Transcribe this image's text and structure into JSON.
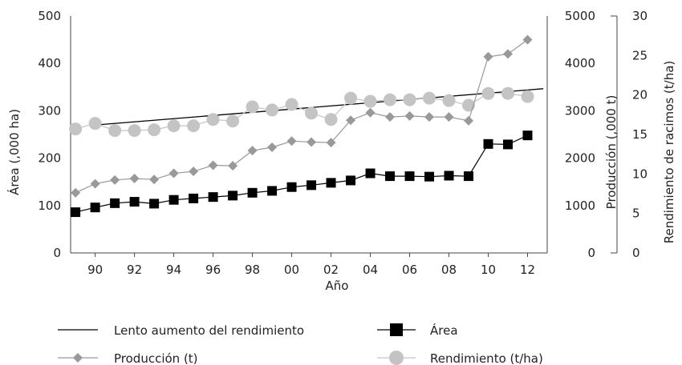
{
  "chart_data": {
    "type": "line",
    "xlabel": "Año",
    "x": [
      1989,
      1990,
      1991,
      1992,
      1993,
      1994,
      1995,
      1996,
      1997,
      1998,
      1999,
      2000,
      2001,
      2002,
      2003,
      2004,
      2005,
      2006,
      2007,
      2008,
      2009,
      2010,
      2011,
      2012
    ],
    "x_tick_labels": [
      "90",
      "92",
      "94",
      "96",
      "98",
      "00",
      "02",
      "04",
      "06",
      "08",
      "10",
      "12"
    ],
    "x_tick_values": [
      1990,
      1992,
      1994,
      1996,
      1998,
      2000,
      2002,
      2004,
      2006,
      2008,
      2010,
      2012
    ],
    "axes": {
      "left": {
        "label": "Área (,000 ha)",
        "ylim": [
          0,
          500
        ],
        "ticks": [
          "0",
          "100",
          "200",
          "300",
          "400",
          "500"
        ]
      },
      "right1": {
        "label": "Producción (,000 t)",
        "ylim": [
          0,
          5000
        ],
        "ticks": [
          "0",
          "1000",
          "2000",
          "3000",
          "4000",
          "5000"
        ]
      },
      "right2": {
        "label": "Rendimiento de racimos (t/ha)",
        "ylim": [
          0,
          30
        ],
        "ticks": [
          "0",
          "5",
          "10",
          "15",
          "20",
          "25",
          "30"
        ]
      }
    },
    "series": [
      {
        "name": "Área",
        "axis": "left",
        "color": "#000000",
        "marker": "square",
        "values": [
          86,
          96,
          105,
          108,
          104,
          112,
          115,
          118,
          121,
          127,
          131,
          139,
          143,
          148,
          153,
          168,
          162,
          162,
          161,
          163,
          162,
          230,
          229,
          248
        ]
      },
      {
        "name": "Producción (t)",
        "axis": "right1",
        "color": "#999999",
        "marker": "diamond",
        "values": [
          1270,
          1460,
          1540,
          1570,
          1550,
          1680,
          1720,
          1850,
          1840,
          2160,
          2230,
          2360,
          2340,
          2330,
          2800,
          2960,
          2870,
          2890,
          2870,
          2870,
          2790,
          4140,
          4200,
          4500
        ]
      },
      {
        "name": "Rendimiento (t/ha)",
        "axis": "right2",
        "color": "#c4c4c4",
        "marker": "circle",
        "values": [
          15.7,
          16.4,
          15.5,
          15.5,
          15.6,
          16.1,
          16.1,
          16.9,
          16.7,
          18.5,
          18.1,
          18.8,
          17.7,
          16.9,
          19.6,
          19.2,
          19.4,
          19.4,
          19.6,
          19.3,
          18.7,
          20.2,
          20.2,
          19.8
        ]
      },
      {
        "name": "Lento aumento del rendimiento",
        "axis": "right2",
        "color": "#000000",
        "marker": "none",
        "x": [
          1990,
          2012.8
        ],
        "values": [
          16.2,
          20.8
        ]
      }
    ],
    "legend": {
      "placement": "bottom"
    },
    "grid": false
  }
}
